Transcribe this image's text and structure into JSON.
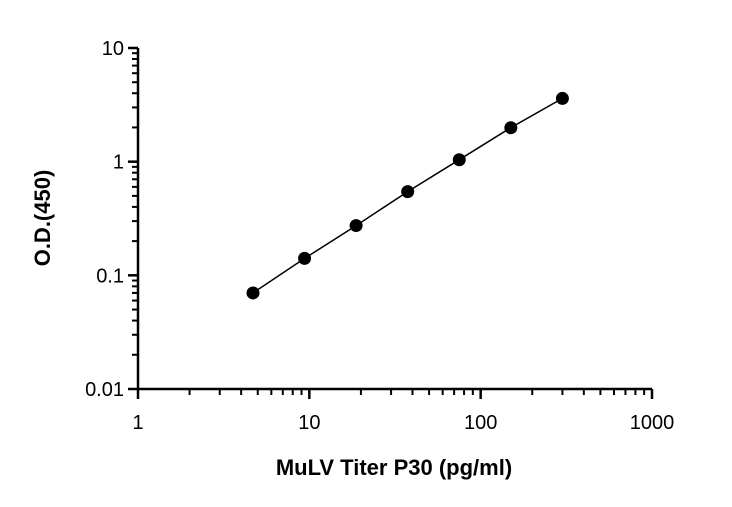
{
  "chart_data": {
    "type": "scatter",
    "title": "",
    "xlabel": "MuLV Titer P30 (pg/ml)",
    "ylabel": "O.D.(450)",
    "xscale": "log",
    "yscale": "log",
    "xlim": [
      1,
      1000
    ],
    "ylim": [
      0.01,
      10
    ],
    "xticks": [
      1,
      10,
      100,
      1000
    ],
    "xtick_labels": [
      "1",
      "10",
      "100",
      "1000"
    ],
    "yticks": [
      0.01,
      0.1,
      1,
      10
    ],
    "ytick_labels": [
      "0.01",
      "0.1",
      "1",
      "10"
    ],
    "grid": false,
    "legend": "none",
    "series": [
      {
        "x": [
          4.69,
          9.38,
          18.75,
          37.5,
          75,
          150,
          300
        ],
        "y": [
          0.07,
          0.141,
          0.274,
          0.545,
          1.04,
          1.99,
          3.6
        ],
        "marker": "filled-circle",
        "fit_line": true,
        "color": "#000000"
      }
    ]
  }
}
